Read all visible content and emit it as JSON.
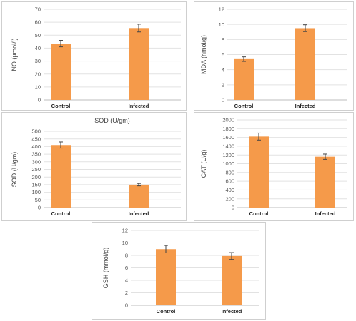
{
  "chart_data": [
    {
      "id": "no",
      "type": "bar",
      "title": "",
      "ylabel": "NO (µmol/l)",
      "categories": [
        "Control",
        "Infected"
      ],
      "values": [
        43.5,
        55.5
      ],
      "errors": [
        2.5,
        3.0
      ],
      "ylim": [
        0,
        70
      ],
      "ticks": [
        0,
        10,
        20,
        30,
        40,
        50,
        60,
        70
      ],
      "grid": true
    },
    {
      "id": "mda",
      "type": "bar",
      "title": "",
      "ylabel": "MDA (nmol/g)",
      "categories": [
        "Control",
        "Infected"
      ],
      "values": [
        5.4,
        9.5
      ],
      "errors": [
        0.3,
        0.45
      ],
      "ylim": [
        0,
        12
      ],
      "ticks": [
        0,
        2,
        4,
        6,
        8,
        10,
        12
      ],
      "grid": true
    },
    {
      "id": "sod",
      "type": "bar",
      "title": "SOD (U/gm)",
      "ylabel": "SOD (U/gm)",
      "categories": [
        "Control",
        "Infected"
      ],
      "values": [
        410,
        150
      ],
      "errors": [
        20,
        8
      ],
      "ylim": [
        0,
        500
      ],
      "ticks": [
        0,
        50,
        100,
        150,
        200,
        250,
        300,
        350,
        400,
        450,
        500
      ],
      "grid": true
    },
    {
      "id": "cat",
      "type": "bar",
      "title": "",
      "ylabel": "CAT (U/g)",
      "categories": [
        "Control",
        "Infected"
      ],
      "values": [
        1620,
        1160
      ],
      "errors": [
        80,
        60
      ],
      "ylim": [
        0,
        2000
      ],
      "ticks": [
        0,
        200,
        400,
        600,
        800,
        1000,
        1200,
        1400,
        1600,
        1800,
        2000
      ],
      "grid": true
    },
    {
      "id": "gsh",
      "type": "bar",
      "title": "",
      "ylabel": "GSH (mmol/g)",
      "categories": [
        "Control",
        "Infected"
      ],
      "values": [
        9.0,
        7.9
      ],
      "errors": [
        0.6,
        0.55
      ],
      "ylim": [
        0,
        12
      ],
      "ticks": [
        0,
        2,
        4,
        6,
        8,
        10,
        12
      ],
      "grid": true
    }
  ],
  "colors": {
    "bar": "#f59a4a",
    "grid": "#e2e2e2",
    "axis": "#bdbdbd",
    "error": "#444444"
  }
}
